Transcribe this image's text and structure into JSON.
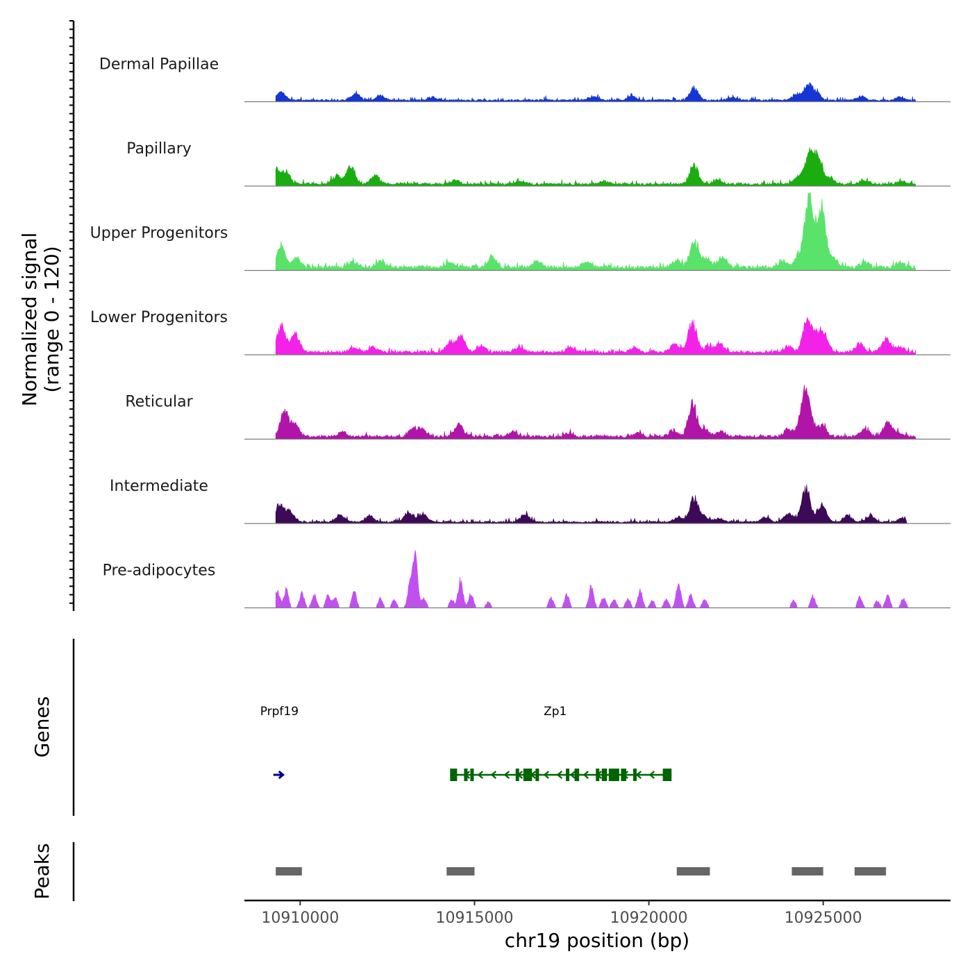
{
  "chart_data": {
    "type": "area",
    "title": "",
    "xlabel": "chr19 position (bp)",
    "xlim": [
      10908400,
      10928650
    ],
    "x_ticks": [
      10910000,
      10915000,
      10920000,
      10925000
    ],
    "x_tick_labels": [
      "10910000",
      "10915000",
      "10920000",
      "10925000"
    ],
    "signal_ylabel_line1": "Normalized signal",
    "signal_ylabel_line2": "(range 0 - 120)",
    "signal_range": [
      0,
      120
    ],
    "series": [
      {
        "name": "Dermal Papillae",
        "color": "#1536D4",
        "baseline": 3,
        "noise": 4,
        "start": 10909300,
        "end": 10927650,
        "peaks": [
          [
            10909450,
            14
          ],
          [
            10911600,
            10
          ],
          [
            10912300,
            7
          ],
          [
            10913800,
            5
          ],
          [
            10918400,
            6
          ],
          [
            10919500,
            6
          ],
          [
            10921300,
            20
          ],
          [
            10922400,
            4
          ],
          [
            10924200,
            8
          ],
          [
            10924550,
            24
          ],
          [
            10924800,
            12
          ],
          [
            10926100,
            6
          ],
          [
            10927200,
            5
          ]
        ]
      },
      {
        "name": "Papillary",
        "color": "#1AAD10",
        "baseline": 4,
        "noise": 4,
        "start": 10909300,
        "end": 10927650,
        "peaks": [
          [
            10909300,
            22
          ],
          [
            10909600,
            18
          ],
          [
            10911050,
            14
          ],
          [
            10911450,
            30
          ],
          [
            10912150,
            14
          ],
          [
            10914450,
            6
          ],
          [
            10916300,
            5
          ],
          [
            10918700,
            5
          ],
          [
            10921300,
            30
          ],
          [
            10922000,
            6
          ],
          [
            10924300,
            12
          ],
          [
            10924600,
            46
          ],
          [
            10924850,
            44
          ],
          [
            10925200,
            10
          ],
          [
            10926200,
            6
          ],
          [
            10927250,
            5
          ]
        ]
      },
      {
        "name": "Upper Progenitors",
        "color": "#5AE36A",
        "baseline": 6,
        "noise": 5,
        "start": 10909300,
        "end": 10927650,
        "peaks": [
          [
            10909450,
            38
          ],
          [
            10909900,
            14
          ],
          [
            10911500,
            8
          ],
          [
            10912300,
            10
          ],
          [
            10914300,
            8
          ],
          [
            10915500,
            18
          ],
          [
            10916800,
            10
          ],
          [
            10918200,
            8
          ],
          [
            10920800,
            12
          ],
          [
            10921300,
            42
          ],
          [
            10921650,
            14
          ],
          [
            10922100,
            16
          ],
          [
            10923850,
            10
          ],
          [
            10924300,
            20
          ],
          [
            10924600,
            120
          ],
          [
            10924950,
            98
          ],
          [
            10925300,
            16
          ],
          [
            10926200,
            8
          ],
          [
            10927200,
            8
          ]
        ]
      },
      {
        "name": "Lower Progenitors",
        "color": "#F222E8",
        "baseline": 5,
        "noise": 4,
        "start": 10909300,
        "end": 10927650,
        "peaks": [
          [
            10909450,
            42
          ],
          [
            10909850,
            30
          ],
          [
            10911550,
            8
          ],
          [
            10912100,
            8
          ],
          [
            10914300,
            14
          ],
          [
            10914600,
            26
          ],
          [
            10915200,
            10
          ],
          [
            10916300,
            8
          ],
          [
            10917750,
            8
          ],
          [
            10919600,
            8
          ],
          [
            10920750,
            14
          ],
          [
            10921250,
            50
          ],
          [
            10921700,
            10
          ],
          [
            10922050,
            14
          ],
          [
            10924000,
            10
          ],
          [
            10924550,
            58
          ],
          [
            10924850,
            28
          ],
          [
            10925050,
            22
          ],
          [
            10926050,
            14
          ],
          [
            10926800,
            22
          ],
          [
            10927200,
            8
          ]
        ]
      },
      {
        "name": "Reticular",
        "color": "#B015A8",
        "baseline": 5,
        "noise": 4,
        "start": 10909300,
        "end": 10927650,
        "peaks": [
          [
            10909550,
            40
          ],
          [
            10909850,
            18
          ],
          [
            10911200,
            8
          ],
          [
            10913250,
            14
          ],
          [
            10913500,
            10
          ],
          [
            10914550,
            20
          ],
          [
            10916100,
            8
          ],
          [
            10917700,
            6
          ],
          [
            10919700,
            6
          ],
          [
            10920700,
            10
          ],
          [
            10921250,
            52
          ],
          [
            10921600,
            12
          ],
          [
            10922050,
            8
          ],
          [
            10924000,
            12
          ],
          [
            10924400,
            34
          ],
          [
            10924550,
            56
          ],
          [
            10924950,
            20
          ],
          [
            10926200,
            14
          ],
          [
            10926850,
            24
          ],
          [
            10927150,
            6
          ]
        ]
      },
      {
        "name": "Intermediate",
        "color": "#3D0A57",
        "baseline": 3,
        "noise": 4,
        "start": 10909300,
        "end": 10927400,
        "peaks": [
          [
            10909400,
            28
          ],
          [
            10909700,
            18
          ],
          [
            10911150,
            12
          ],
          [
            10912000,
            10
          ],
          [
            10913100,
            16
          ],
          [
            10913500,
            14
          ],
          [
            10916450,
            12
          ],
          [
            10920850,
            8
          ],
          [
            10921300,
            40
          ],
          [
            10921600,
            8
          ],
          [
            10922000,
            6
          ],
          [
            10923350,
            8
          ],
          [
            10924000,
            14
          ],
          [
            10924500,
            56
          ],
          [
            10924950,
            30
          ],
          [
            10925700,
            10
          ],
          [
            10926350,
            10
          ],
          [
            10927250,
            6
          ]
        ]
      },
      {
        "name": "Pre-adipocytes",
        "color": "#C051F0",
        "baseline": 0,
        "noise": 0,
        "start": 10909300,
        "end": 10927650,
        "peaks": [
          [
            10909350,
            28
          ],
          [
            10909600,
            30
          ],
          [
            10910050,
            24
          ],
          [
            10910400,
            22
          ],
          [
            10910800,
            20
          ],
          [
            10911000,
            16
          ],
          [
            10911550,
            26
          ],
          [
            10912300,
            16
          ],
          [
            10912700,
            14
          ],
          [
            10913150,
            40
          ],
          [
            10913300,
            92
          ],
          [
            10913550,
            16
          ],
          [
            10914350,
            14
          ],
          [
            10914600,
            46
          ],
          [
            10914900,
            24
          ],
          [
            10915400,
            10
          ],
          [
            10917200,
            16
          ],
          [
            10917650,
            22
          ],
          [
            10918350,
            36
          ],
          [
            10918700,
            18
          ],
          [
            10919000,
            14
          ],
          [
            10919400,
            16
          ],
          [
            10919750,
            28
          ],
          [
            10920100,
            12
          ],
          [
            10920500,
            14
          ],
          [
            10920850,
            44
          ],
          [
            10921200,
            22
          ],
          [
            10921600,
            14
          ],
          [
            10924150,
            12
          ],
          [
            10924700,
            20
          ],
          [
            10926050,
            18
          ],
          [
            10926550,
            12
          ],
          [
            10926850,
            22
          ],
          [
            10927300,
            16
          ]
        ]
      }
    ],
    "genes": [
      {
        "name": "Prpf19",
        "strand": "+",
        "start": 10909350,
        "end": 10909550,
        "color": "#00008B",
        "exons": []
      },
      {
        "name": "Zp1",
        "strand": "-",
        "start": 10914300,
        "end": 10920650,
        "color": "#006400",
        "exons": [
          [
            10914300,
            10914500
          ],
          [
            10914700,
            10914800
          ],
          [
            10914880,
            10914950
          ],
          [
            10916180,
            10916270
          ],
          [
            10916400,
            10916650
          ],
          [
            10916750,
            10916850
          ],
          [
            10917620,
            10917700
          ],
          [
            10917870,
            10918000
          ],
          [
            10918480,
            10918560
          ],
          [
            10918650,
            10918800
          ],
          [
            10918850,
            10919150
          ],
          [
            10919200,
            10919350
          ],
          [
            10919550,
            10919650
          ],
          [
            10920400,
            10920650
          ]
        ]
      }
    ],
    "genes_ylabel": "Genes",
    "peaks_ylabel": "Peaks",
    "peak_color": "#666666",
    "peak_regions": [
      [
        10909300,
        10910050
      ],
      [
        10914200,
        10915000
      ],
      [
        10920800,
        10921750
      ],
      [
        10924100,
        10925000
      ],
      [
        10925900,
        10926800
      ]
    ]
  }
}
